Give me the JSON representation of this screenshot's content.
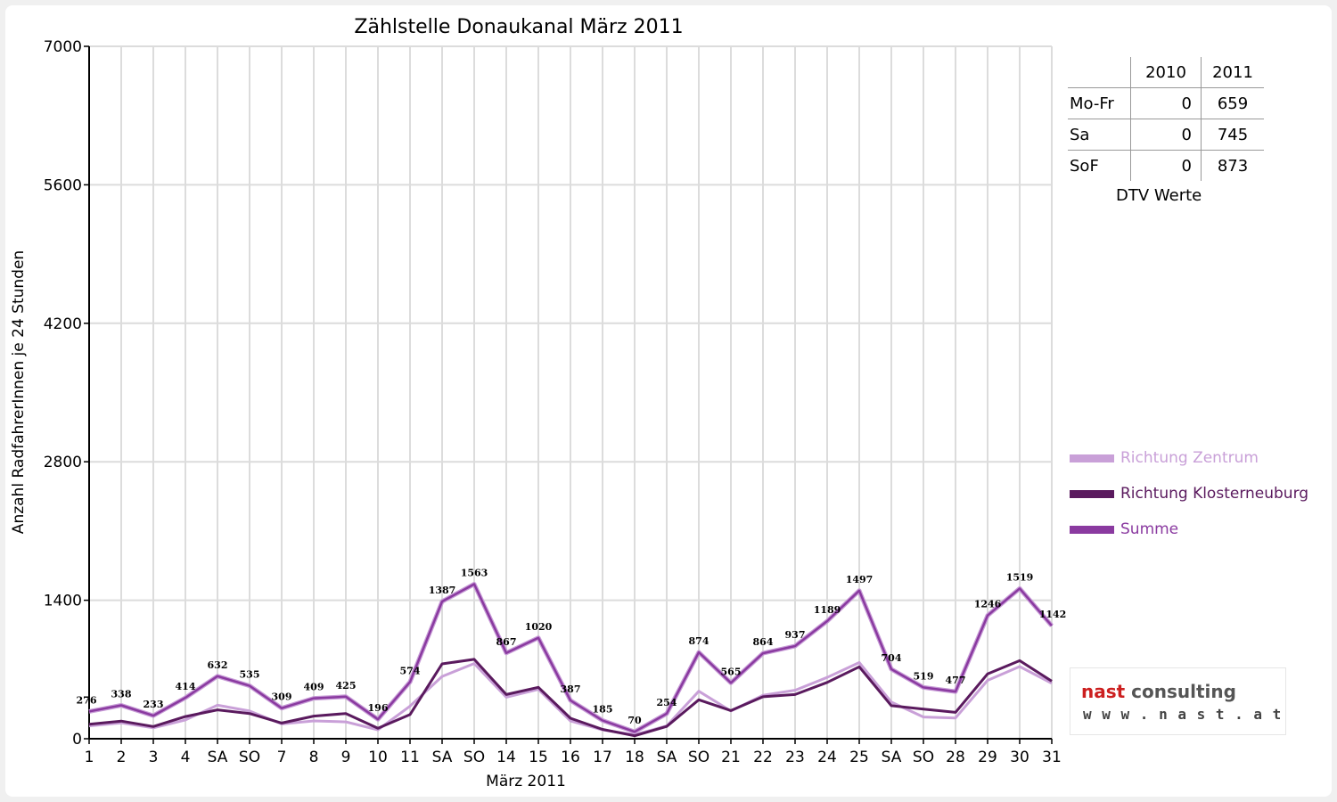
{
  "chart_data": {
    "type": "line",
    "title": "Zählstelle Donaukanal März 2011",
    "xlabel": "März 2011",
    "ylabel": "Anzahl RadfahrerInnen je 24 Stunden",
    "ylim": [
      0,
      7000
    ],
    "yticks": [
      "0",
      "1400",
      "2800",
      "4200",
      "5600",
      "7000"
    ],
    "grid": true,
    "legend_position": "right",
    "categories": [
      "1",
      "2",
      "3",
      "4",
      "SA",
      "SO",
      "7",
      "8",
      "9",
      "10",
      "11",
      "SA",
      "SO",
      "14",
      "15",
      "16",
      "17",
      "18",
      "SA",
      "SO",
      "21",
      "22",
      "23",
      "24",
      "25",
      "SA",
      "SO",
      "28",
      "29",
      "30",
      "31"
    ],
    "weekend_categories": [
      "SO"
    ],
    "weekend_color": "#e00000",
    "series": [
      {
        "name": "Richtung Zentrum",
        "color": "#c9a0d8",
        "values": [
          130,
          160,
          110,
          190,
          340,
          280,
          150,
          180,
          170,
          90,
          330,
          630,
          760,
          420,
          500,
          180,
          90,
          40,
          130,
          480,
          280,
          440,
          490,
          620,
          770,
          370,
          220,
          210,
          590,
          730,
          560
        ]
      },
      {
        "name": "Richtung Klosterneuburg",
        "color": "#5a1a5e",
        "values": [
          146,
          178,
          123,
          224,
          292,
          255,
          159,
          229,
          255,
          106,
          244,
          757,
          803,
          447,
          520,
          207,
          95,
          30,
          124,
          394,
          285,
          424,
          447,
          569,
          727,
          334,
          299,
          267,
          656,
          789,
          582
        ]
      },
      {
        "name": "Summe",
        "color": "#8a3aa0",
        "values": [
          276,
          338,
          233,
          414,
          632,
          535,
          309,
          409,
          425,
          196,
          574,
          1387,
          1563,
          867,
          1020,
          387,
          185,
          70,
          254,
          874,
          565,
          864,
          937,
          1189,
          1497,
          704,
          519,
          477,
          1246,
          1519,
          1142
        ]
      }
    ],
    "data_labels": [
      276,
      338,
      233,
      414,
      632,
      535,
      309,
      409,
      425,
      196,
      574,
      1387,
      1563,
      867,
      1020,
      387,
      185,
      70,
      254,
      874,
      565,
      864,
      937,
      1189,
      1497,
      704,
      519,
      477,
      1246,
      1519,
      1142
    ]
  },
  "dtv_table": {
    "headers": [
      "",
      "2010",
      "2011"
    ],
    "rows": [
      {
        "label": "Mo-Fr",
        "v2010": "0",
        "v2011": "659"
      },
      {
        "label": "Sa",
        "v2010": "0",
        "v2011": "745"
      },
      {
        "label": "SoF",
        "v2010": "0",
        "v2011": "873"
      }
    ],
    "caption": "DTV Werte"
  },
  "legend": [
    {
      "label": "Richtung Zentrum",
      "color": "#c9a0d8"
    },
    {
      "label": "Richtung Klosterneuburg",
      "color": "#5a1a5e"
    },
    {
      "label": "Summe",
      "color": "#8a3aa0"
    }
  ],
  "logo": {
    "name_part1": "nast",
    "name_part2": " consulting",
    "url": "www.nast.at",
    "accent_color": "#cc1f1f"
  }
}
